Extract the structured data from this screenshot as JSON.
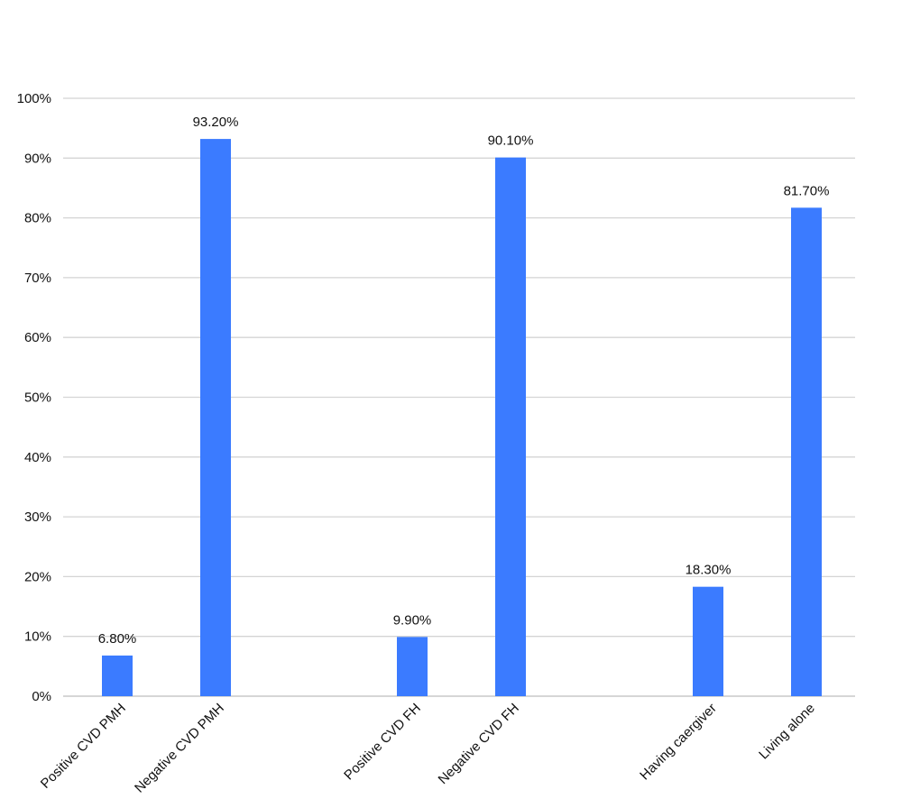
{
  "chart_data": {
    "type": "bar",
    "title": "",
    "xlabel": "",
    "ylabel": "",
    "ylim": [
      0,
      100
    ],
    "yticks": [
      0,
      10,
      20,
      30,
      40,
      50,
      60,
      70,
      80,
      90,
      100
    ],
    "ytick_labels": [
      "0%",
      "10%",
      "20%",
      "30%",
      "40%",
      "50%",
      "60%",
      "70%",
      "80%",
      "90%",
      "100%"
    ],
    "grid": true,
    "bar_color": "#3b7bff",
    "groups": [
      [
        "Positive CVD PMH",
        "Negative CVD PMH"
      ],
      [
        "Positive CVD FH",
        "Negative CVD FH"
      ],
      [
        "Having caergiver",
        "Living alone"
      ]
    ],
    "categories": [
      "Positive CVD PMH",
      "Negative CVD PMH",
      "Positive CVD FH",
      "Negative CVD FH",
      "Having caergiver",
      "Living alone"
    ],
    "values": [
      6.8,
      93.2,
      9.9,
      90.1,
      18.3,
      81.7
    ],
    "data_labels": [
      "6.80%",
      "93.20%",
      "9.90%",
      "90.10%",
      "18.30%",
      "81.70%"
    ]
  }
}
